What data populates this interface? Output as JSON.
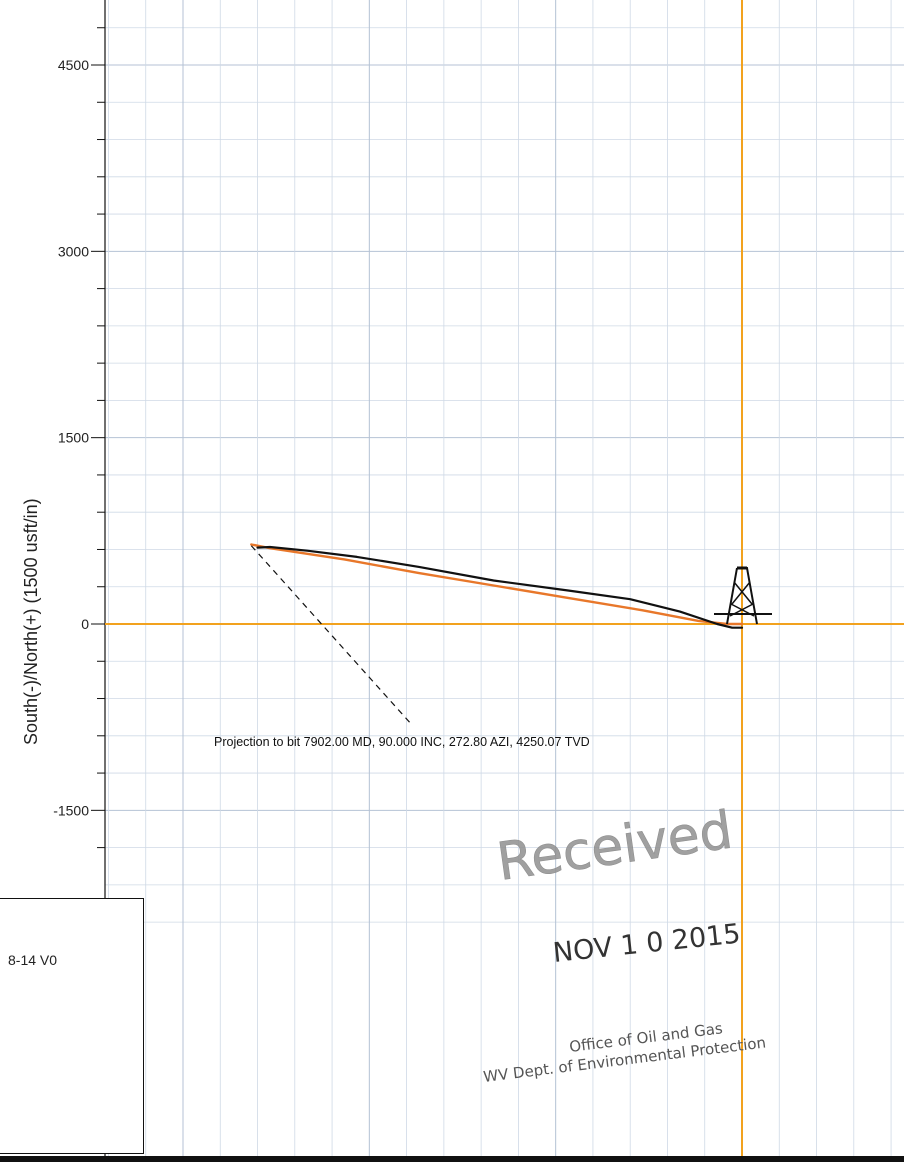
{
  "chart_data": {
    "type": "line",
    "title": "",
    "xlabel": "",
    "ylabel": "South(-)/North(+) (1500 usft/in)",
    "ylim": [
      -2100,
      4950
    ],
    "xlim": [
      -4900,
      1300
    ],
    "y_ticks": [
      -1500,
      0,
      1500,
      3000,
      4500
    ],
    "y_tick_labels": [
      "-1500",
      "0",
      "1500",
      "3000",
      "4500"
    ],
    "series": [
      {
        "kind": "plan",
        "color": "#e8772a",
        "x": [
          0,
          -120,
          -350,
          -800,
          -1400,
          -2000,
          -2600,
          -3200,
          -3800,
          -3950
        ],
        "y": [
          0,
          0,
          25,
          110,
          210,
          310,
          410,
          520,
          610,
          640
        ]
      },
      {
        "kind": "actual",
        "color": "#111111",
        "x": [
          0,
          -80,
          -200,
          -500,
          -900,
          -1400,
          -2000,
          -2600,
          -3100,
          -3500,
          -3800,
          -3900
        ],
        "y": [
          -30,
          -30,
          0,
          100,
          200,
          270,
          350,
          460,
          540,
          590,
          620,
          615
        ]
      }
    ],
    "projection_line": {
      "x": [
        -3950,
        -2650
      ],
      "y": [
        630,
        -820
      ]
    },
    "wellhead": {
      "x": 0,
      "y": 0
    },
    "annotation": "Projection to bit 7902.00 MD, 90.000 INC, 272.80 AZI, 4250.07 TVD",
    "grid": true,
    "axis_line_color": "#f2a21e",
    "grid_color": "#cfd9e6"
  },
  "legend_fragment": "8-14 V0",
  "stamp": {
    "received": "Received",
    "date": "NOV 1 0 2015",
    "office": "Office of Oil and Gas",
    "dept": "WV Dept. of Environmental Protection"
  }
}
